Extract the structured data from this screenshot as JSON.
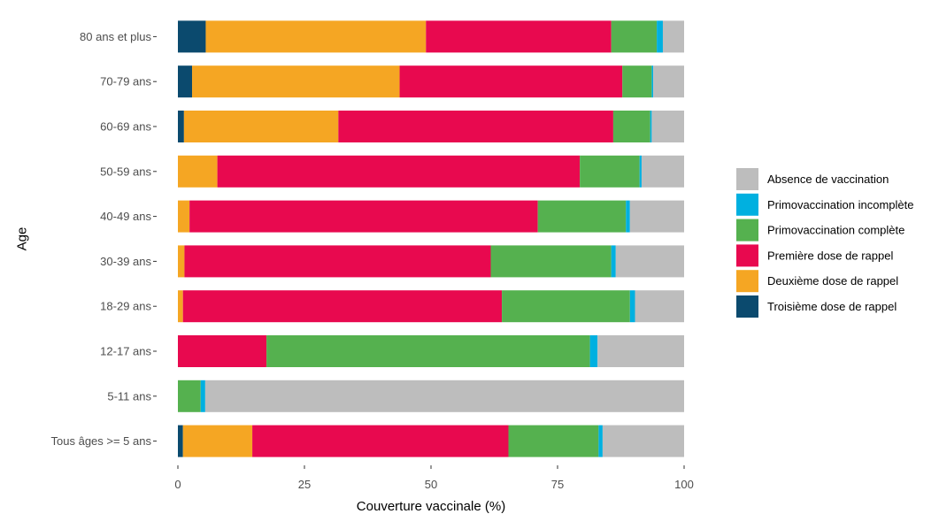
{
  "chart_data": {
    "type": "bar",
    "orientation": "horizontal",
    "stacked": true,
    "title": "",
    "xlabel": "Couverture vaccinale (%)",
    "ylabel": "Age",
    "xlim": [
      0,
      100
    ],
    "xticks": [
      0,
      25,
      50,
      75,
      100
    ],
    "grid": false,
    "legend_position": "right",
    "categories": [
      "80 ans et plus",
      "70-79 ans",
      "60-69 ans",
      "50-59 ans",
      "40-49 ans",
      "30-39 ans",
      "18-29 ans",
      "12-17 ans",
      "5-11 ans",
      "Tous âges >= 5 ans"
    ],
    "series": [
      {
        "name": "Troisième dose de rappel",
        "color": "#0b4a6e",
        "values": [
          5.5,
          2.8,
          1.2,
          0,
          0,
          0,
          0,
          0,
          0,
          1.0
        ]
      },
      {
        "name": "Deuxième dose de rappel",
        "color": "#f5a623",
        "values": [
          43.5,
          41.0,
          30.5,
          7.8,
          2.3,
          1.3,
          1.0,
          0,
          0,
          13.7
        ]
      },
      {
        "name": "Première dose de rappel",
        "color": "#e8094f",
        "values": [
          36.6,
          44.0,
          54.3,
          71.6,
          68.8,
          60.5,
          63.0,
          17.5,
          0,
          50.6
        ]
      },
      {
        "name": "Primovaccination complète",
        "color": "#55b14f",
        "values": [
          9.0,
          5.8,
          7.3,
          11.8,
          17.4,
          23.8,
          25.3,
          63.9,
          4.5,
          17.8
        ]
      },
      {
        "name": "Primovaccination incomplète",
        "color": "#00b0e0",
        "values": [
          1.2,
          0.3,
          0.3,
          0.4,
          0.8,
          0.9,
          1.0,
          1.5,
          0.9,
          0.8
        ]
      },
      {
        "name": "Absence de vaccination",
        "color": "#bdbdbd",
        "values": [
          4.2,
          6.1,
          6.4,
          8.4,
          10.7,
          13.5,
          9.7,
          17.1,
          94.6,
          16.1
        ]
      }
    ],
    "legend_order": [
      "Absence de vaccination",
      "Primovaccination incomplète",
      "Primovaccination complète",
      "Première dose de rappel",
      "Deuxième dose de rappel",
      "Troisième dose de rappel"
    ]
  }
}
